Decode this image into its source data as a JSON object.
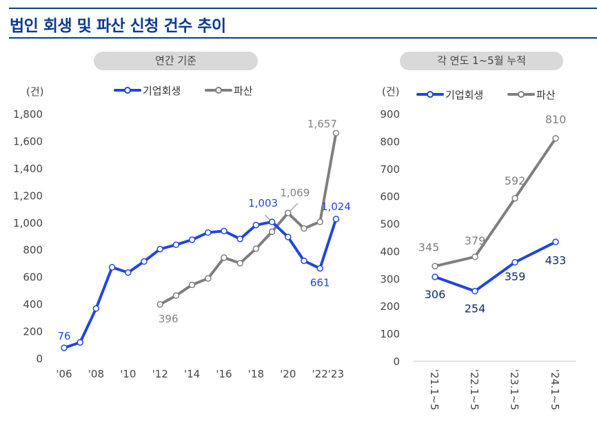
{
  "title": "법인 회생 및 파산 신청 건수 추이",
  "colors": {
    "rehab": "#1f45e0",
    "bankrupt": "#7f7f7f",
    "title": "#0b3a8c",
    "rehab_label_right": "#0b2a6b"
  },
  "chart_data": [
    {
      "type": "line",
      "header": "연간 기준",
      "ylabel": "(건)",
      "ylim": [
        0,
        1800
      ],
      "yticks": [
        0,
        200,
        400,
        600,
        800,
        1000,
        1200,
        1400,
        1600,
        1800
      ],
      "ytick_labels": [
        "0",
        "200",
        "400",
        "600",
        "800",
        "1,000",
        "1,200",
        "1,400",
        "1,600",
        "1,800"
      ],
      "x": [
        2006,
        2007,
        2008,
        2009,
        2010,
        2011,
        2012,
        2013,
        2014,
        2015,
        2016,
        2017,
        2018,
        2019,
        2020,
        2021,
        2022,
        2023
      ],
      "xtick_labels": [
        {
          "x": 2006,
          "label": "'06"
        },
        {
          "x": 2008,
          "label": "'08"
        },
        {
          "x": 2010,
          "label": "'10"
        },
        {
          "x": 2012,
          "label": "'12"
        },
        {
          "x": 2014,
          "label": "'14"
        },
        {
          "x": 2016,
          "label": "'16"
        },
        {
          "x": 2018,
          "label": "'18"
        },
        {
          "x": 2020,
          "label": "'20"
        },
        {
          "x": 2022,
          "label": "'22"
        },
        {
          "x": 2023,
          "label": "'23"
        }
      ],
      "legend": "top",
      "series": [
        {
          "name": "기업회생",
          "key": "rehab",
          "values": [
            76,
            116,
            366,
            669,
            630,
            712,
            803,
            835,
            872,
            925,
            936,
            878,
            980,
            1003,
            892,
            717,
            661,
            1024
          ],
          "labels": [
            {
              "x": 2006,
              "text": "76"
            },
            {
              "x": 2019,
              "text": "1,003"
            },
            {
              "x": 2022,
              "text": "661"
            },
            {
              "x": 2023,
              "text": "1,024"
            }
          ]
        },
        {
          "name": "파산",
          "key": "bankrupt",
          "values": [
            null,
            null,
            null,
            null,
            null,
            null,
            396,
            461,
            540,
            587,
            740,
            699,
            806,
            931,
            1069,
            955,
            1004,
            1657
          ],
          "labels": [
            {
              "x": 2012,
              "text": "396"
            },
            {
              "x": 2020,
              "text": "1,069"
            },
            {
              "x": 2023,
              "text": "1,657"
            }
          ]
        }
      ]
    },
    {
      "type": "line",
      "header": "각 연도 1~5월 누적",
      "ylabel": "(건)",
      "ylim": [
        0,
        900
      ],
      "yticks": [
        0,
        100,
        200,
        300,
        400,
        500,
        600,
        700,
        800,
        900
      ],
      "ytick_labels": [
        "0",
        "100",
        "200",
        "300",
        "400",
        "500",
        "600",
        "700",
        "800",
        "900"
      ],
      "categories": [
        "'21.1~5",
        "'22.1~5",
        "'23.1~5",
        "'24.1~5"
      ],
      "legend": "top",
      "series": [
        {
          "name": "기업회생",
          "key": "rehab",
          "values": [
            306,
            254,
            359,
            433
          ]
        },
        {
          "name": "파산",
          "key": "bankrupt",
          "values": [
            345,
            379,
            592,
            810
          ]
        }
      ]
    }
  ]
}
